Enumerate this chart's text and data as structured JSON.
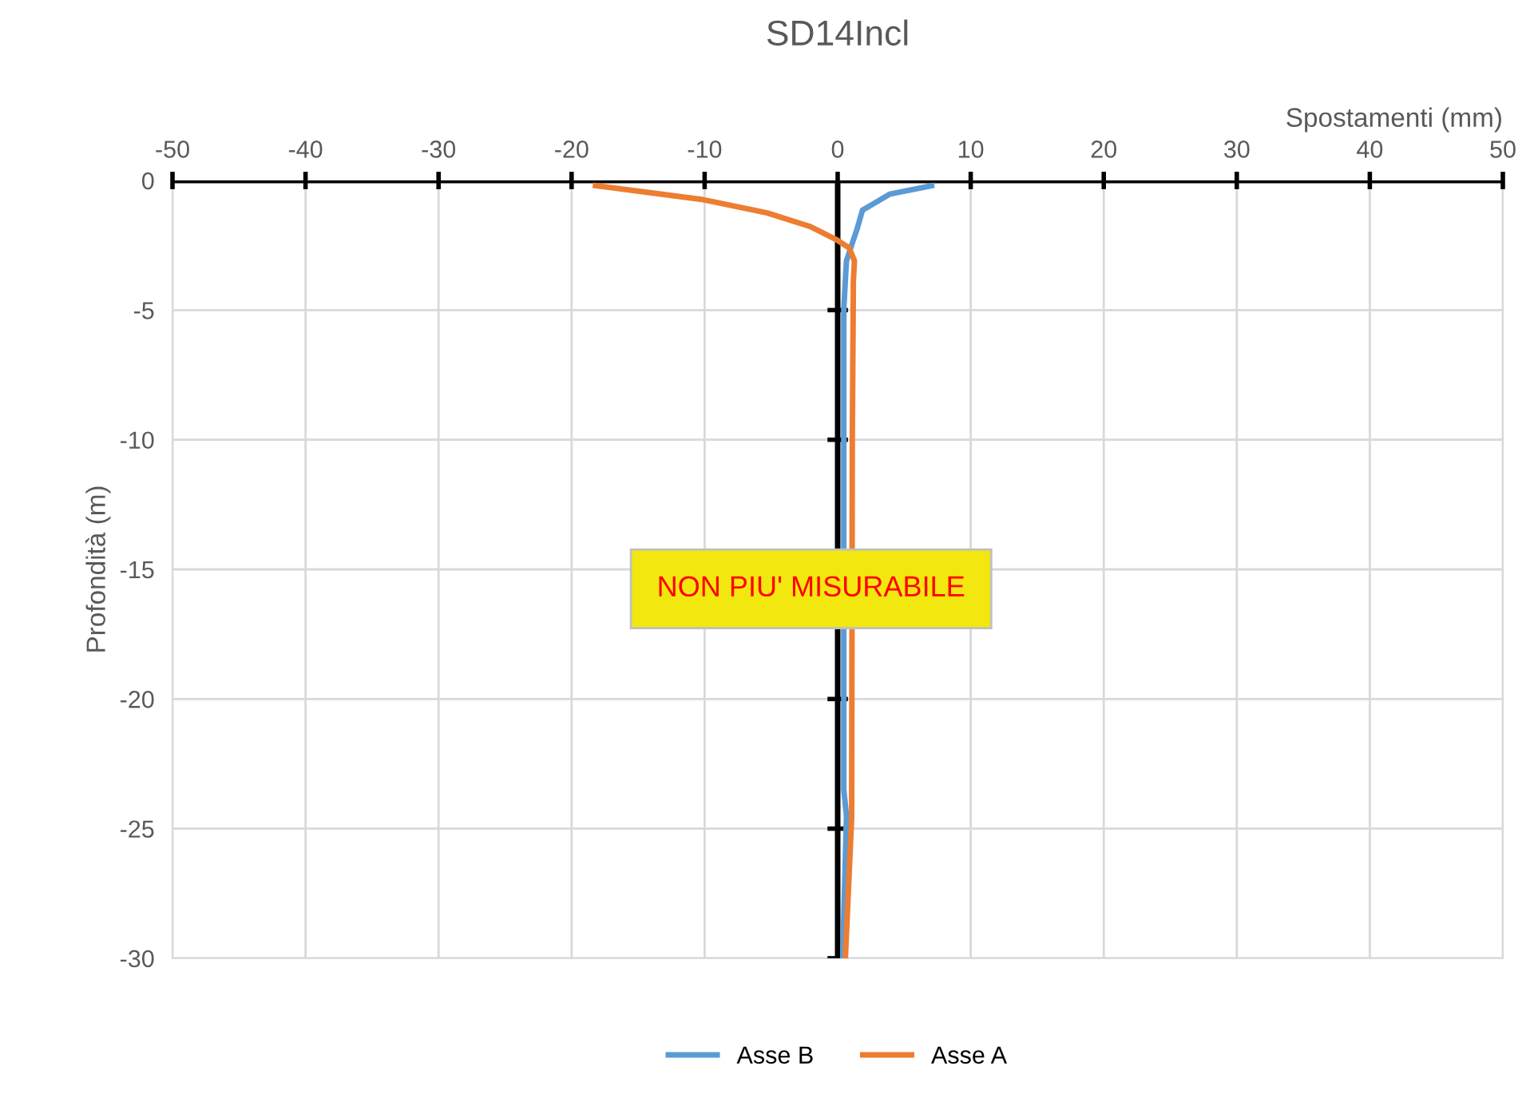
{
  "chart_data": {
    "type": "line",
    "title": "SD14Incl",
    "xlabel": "Spostamenti (mm)",
    "ylabel": "Profondità (m)",
    "xlim": [
      -50,
      50
    ],
    "xticks": [
      -50,
      -40,
      -30,
      -20,
      -10,
      0,
      10,
      20,
      30,
      40,
      50
    ],
    "ylim": [
      -30,
      0
    ],
    "yticks": [
      -30,
      -25,
      -20,
      -15,
      -10,
      -5,
      0
    ],
    "grid": true,
    "legend": "bottom",
    "marker": "none",
    "line_style": "solid",
    "annotations": [
      "NON PIU' MISURABILE"
    ],
    "series": [
      {
        "name": "Asse B",
        "color": "#5b9bd5",
        "x": [
          7.06,
          3.9,
          1.86,
          1.46,
          1.06,
          0.66,
          0.46,
          0.46,
          0.66,
          0.38
        ],
        "values": [
          -0.2,
          -0.53,
          -1.15,
          -1.87,
          -2.48,
          -3.1,
          -4.95,
          -23.5,
          -24.5,
          -30
        ]
      },
      {
        "name": "Asse A",
        "color": "#ed7d31",
        "x": [
          -18.2,
          -10.1,
          -5.3,
          -2.1,
          -0.1,
          0.86,
          1.26,
          1.18,
          1.1,
          1.05,
          0.58
        ],
        "values": [
          -0.2,
          -0.74,
          -1.25,
          -1.77,
          -2.28,
          -2.6,
          -3.1,
          -3.9,
          -10,
          -24.6,
          -30
        ]
      }
    ]
  }
}
